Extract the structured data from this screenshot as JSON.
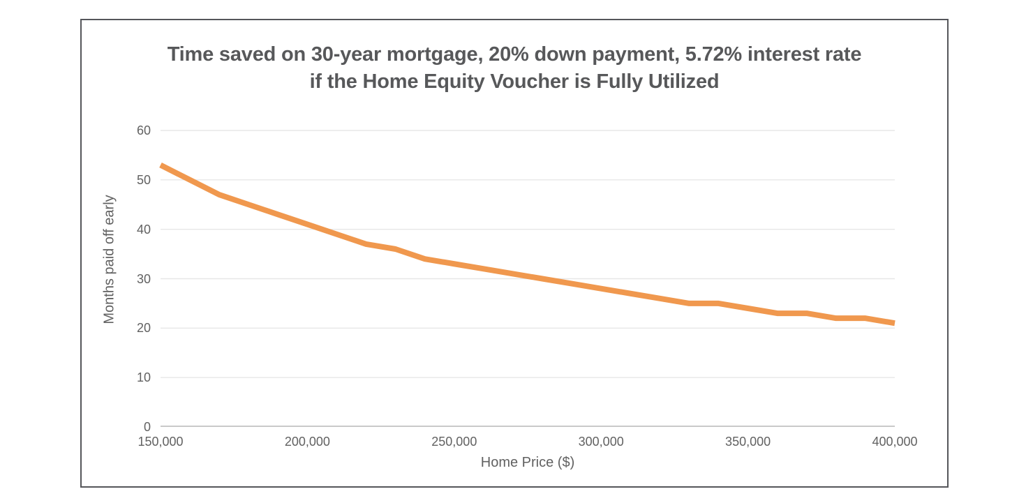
{
  "chart_data": {
    "type": "line",
    "title_line1": "Time saved on 30-year mortgage, 20% down payment, 5.72% interest rate",
    "title_line2": "if the Home Equity Voucher is Fully Utilized",
    "xlabel": "Home Price ($)",
    "ylabel": "Months paid off early",
    "x": [
      150000,
      160000,
      170000,
      180000,
      190000,
      200000,
      210000,
      220000,
      230000,
      240000,
      250000,
      260000,
      270000,
      280000,
      290000,
      300000,
      310000,
      320000,
      330000,
      340000,
      350000,
      360000,
      370000,
      380000,
      390000,
      400000
    ],
    "values": [
      53,
      50,
      47,
      45,
      43,
      41,
      39,
      37,
      36,
      34,
      33,
      32,
      31,
      30,
      29,
      28,
      27,
      26,
      25,
      25,
      24,
      23,
      23,
      22,
      22,
      21
    ],
    "xlim": [
      150000,
      400000
    ],
    "ylim": [
      0,
      60
    ],
    "x_tick_values": [
      150000,
      200000,
      250000,
      300000,
      350000,
      400000
    ],
    "x_tick_labels": [
      "150,000",
      "200,000",
      "250,000",
      "300,000",
      "350,000",
      "400,000"
    ],
    "y_tick_values": [
      0,
      10,
      20,
      30,
      40,
      50,
      60
    ],
    "y_tick_labels": [
      "0",
      "10",
      "20",
      "30",
      "40",
      "50",
      "60"
    ],
    "grid": "horizontal",
    "legend": "none",
    "line_color": "#F0984E",
    "line_width": 8,
    "gridline_color": "#e7e7e7",
    "axis_line_color": "#c9c9c9",
    "title_color": "#57585a",
    "axis_text_color": "#616161"
  }
}
